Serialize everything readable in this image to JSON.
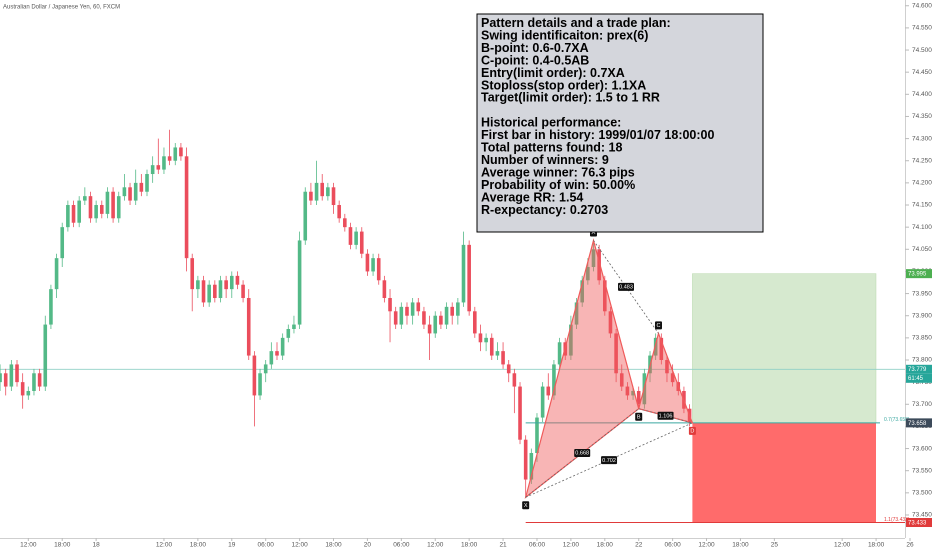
{
  "chart_data": {
    "type": "candlestick",
    "title": "Australian Dollar / Japanese Yen, 60, FXCM",
    "up_color": "#53b987",
    "down_color": "#eb4d5c",
    "xlim": [
      -5.01,
      156
    ],
    "ylim": [
      73.398,
      74.613
    ],
    "xticks": [
      {
        "value": 0,
        "label": "12:00"
      },
      {
        "value": 6,
        "label": "18:00"
      },
      {
        "value": 12,
        "label": "18"
      },
      {
        "value": 24,
        "label": "12:00"
      },
      {
        "value": 30,
        "label": "18:00"
      },
      {
        "value": 36,
        "label": "19"
      },
      {
        "value": 42,
        "label": "06:00"
      },
      {
        "value": 48,
        "label": "12:00"
      },
      {
        "value": 54,
        "label": "18:00"
      },
      {
        "value": 60,
        "label": "20"
      },
      {
        "value": 66,
        "label": "06:00"
      },
      {
        "value": 72,
        "label": "12:00"
      },
      {
        "value": 78,
        "label": "18:00"
      },
      {
        "value": 84,
        "label": "21"
      },
      {
        "value": 90,
        "label": "06:00"
      },
      {
        "value": 96,
        "label": "12:00"
      },
      {
        "value": 102,
        "label": "18:00"
      },
      {
        "value": 108,
        "label": "22"
      },
      {
        "value": 114,
        "label": "06:00"
      },
      {
        "value": 120,
        "label": "12:00"
      },
      {
        "value": 126,
        "label": "18:00"
      },
      {
        "value": 132,
        "label": "25"
      },
      {
        "value": 144,
        "label": "12:00"
      },
      {
        "value": 150,
        "label": "18:00"
      },
      {
        "value": 156,
        "label": "26"
      }
    ],
    "yticks": [
      {
        "value": 73.45,
        "label": "73.450"
      },
      {
        "value": 73.5,
        "label": "73.500"
      },
      {
        "value": 73.55,
        "label": "73.550"
      },
      {
        "value": 73.6,
        "label": "73.600"
      },
      {
        "value": 73.65,
        "label": "73.650"
      },
      {
        "value": 73.7,
        "label": "73.700"
      },
      {
        "value": 73.75,
        "label": "73.750"
      },
      {
        "value": 73.8,
        "label": "73.800"
      },
      {
        "value": 73.85,
        "label": "73.850"
      },
      {
        "value": 73.9,
        "label": "73.900"
      },
      {
        "value": 73.95,
        "label": "73.950"
      },
      {
        "value": 74,
        "label": "74.000"
      },
      {
        "value": 74.05,
        "label": "74.050"
      },
      {
        "value": 74.1,
        "label": "74.100"
      },
      {
        "value": 74.15,
        "label": "74.150"
      },
      {
        "value": 74.2,
        "label": "74.200"
      },
      {
        "value": 74.25,
        "label": "74.250"
      },
      {
        "value": 74.3,
        "label": "74.300"
      },
      {
        "value": 74.35,
        "label": "74.350"
      },
      {
        "value": 74.4,
        "label": "74.400"
      },
      {
        "value": 74.45,
        "label": "74.450"
      },
      {
        "value": 74.5,
        "label": "74.500"
      },
      {
        "value": 74.55,
        "label": "74.550"
      },
      {
        "value": 74.6,
        "label": "74.600"
      }
    ],
    "x": [
      -5,
      -4,
      -3,
      -2,
      -1,
      0,
      1,
      2,
      3,
      4,
      5,
      6,
      7,
      8,
      9,
      10,
      11,
      12,
      13,
      14,
      15,
      16,
      17,
      18,
      19,
      20,
      21,
      22,
      23,
      24,
      25,
      26,
      27,
      28,
      29,
      30,
      31,
      32,
      33,
      34,
      35,
      36,
      37,
      38,
      39,
      40,
      41,
      42,
      43,
      44,
      45,
      46,
      47,
      48,
      49,
      50,
      51,
      52,
      53,
      54,
      55,
      56,
      57,
      58,
      59,
      60,
      61,
      62,
      63,
      64,
      65,
      66,
      67,
      68,
      69,
      70,
      71,
      72,
      73,
      74,
      75,
      76,
      77,
      78,
      79,
      80,
      81,
      82,
      83,
      84,
      85,
      86,
      87,
      88,
      89,
      90,
      91,
      92,
      93,
      94,
      95,
      96,
      97,
      98,
      99,
      100,
      101,
      102,
      103,
      104,
      105,
      106,
      107,
      108,
      109,
      110,
      111,
      112,
      113,
      114,
      115,
      116,
      117
    ],
    "candles": [
      [
        73.75,
        73.79,
        73.73,
        73.77
      ],
      [
        73.77,
        73.78,
        73.72,
        73.74
      ],
      [
        73.74,
        73.8,
        73.73,
        73.79
      ],
      [
        73.79,
        73.8,
        73.74,
        73.75
      ],
      [
        73.75,
        73.77,
        73.69,
        73.72
      ],
      [
        73.72,
        73.74,
        73.71,
        73.73
      ],
      [
        73.73,
        73.78,
        73.72,
        73.77
      ],
      [
        73.77,
        73.78,
        73.73,
        73.74
      ],
      [
        73.74,
        73.9,
        73.73,
        73.88
      ],
      [
        73.88,
        73.97,
        73.87,
        73.96
      ],
      [
        73.96,
        74.04,
        73.94,
        74.03
      ],
      [
        74.03,
        74.11,
        74.01,
        74.1
      ],
      [
        74.1,
        74.16,
        74.09,
        74.15
      ],
      [
        74.15,
        74.16,
        74.1,
        74.11
      ],
      [
        74.11,
        74.17,
        74.1,
        74.16
      ],
      [
        74.16,
        74.19,
        74.15,
        74.17
      ],
      [
        74.17,
        74.18,
        74.11,
        74.12
      ],
      [
        74.12,
        74.16,
        74.11,
        74.15
      ],
      [
        74.15,
        74.16,
        74.12,
        74.13
      ],
      [
        74.13,
        74.19,
        74.12,
        74.18
      ],
      [
        74.18,
        74.19,
        74.11,
        74.12
      ],
      [
        74.12,
        74.18,
        74.11,
        74.17
      ],
      [
        74.17,
        74.22,
        74.16,
        74.19
      ],
      [
        74.19,
        74.2,
        74.15,
        74.16
      ],
      [
        74.16,
        74.23,
        74.15,
        74.2
      ],
      [
        74.2,
        74.22,
        74.17,
        74.18
      ],
      [
        74.18,
        74.23,
        74.17,
        74.22
      ],
      [
        74.22,
        74.26,
        74.2,
        74.24
      ],
      [
        74.24,
        74.3,
        74.22,
        74.23
      ],
      [
        74.23,
        74.28,
        74.22,
        74.26
      ],
      [
        74.26,
        74.32,
        74.24,
        74.25
      ],
      [
        74.25,
        74.29,
        74.24,
        74.28
      ],
      [
        74.28,
        74.29,
        74.25,
        74.26
      ],
      [
        74.26,
        74.28,
        74,
        74.03
      ],
      [
        74.03,
        74.04,
        73.91,
        73.96
      ],
      [
        73.96,
        73.99,
        73.94,
        73.98
      ],
      [
        73.98,
        73.99,
        73.92,
        73.93
      ],
      [
        73.93,
        73.98,
        73.92,
        73.97
      ],
      [
        73.97,
        73.98,
        73.93,
        73.94
      ],
      [
        73.94,
        73.99,
        73.93,
        73.98
      ],
      [
        73.98,
        73.99,
        73.94,
        73.96
      ],
      [
        73.96,
        74,
        73.94,
        73.99
      ],
      [
        73.99,
        74,
        73.96,
        73.97
      ],
      [
        73.97,
        73.98,
        73.93,
        73.94
      ],
      [
        73.94,
        73.96,
        73.8,
        73.81
      ],
      [
        73.81,
        73.82,
        73.65,
        73.72
      ],
      [
        73.72,
        73.78,
        73.71,
        73.77
      ],
      [
        73.77,
        73.8,
        73.75,
        73.79
      ],
      [
        73.79,
        73.84,
        73.78,
        73.82
      ],
      [
        73.82,
        73.84,
        73.8,
        73.81
      ],
      [
        73.81,
        73.86,
        73.8,
        73.85
      ],
      [
        73.85,
        73.88,
        73.84,
        73.87
      ],
      [
        73.87,
        73.9,
        73.86,
        73.88
      ],
      [
        73.88,
        74.09,
        73.87,
        74.07
      ],
      [
        74.07,
        74.19,
        74.06,
        74.18
      ],
      [
        74.18,
        74.2,
        74.15,
        74.16
      ],
      [
        74.16,
        74.25,
        74.15,
        74.2
      ],
      [
        74.2,
        74.22,
        74.16,
        74.17
      ],
      [
        74.17,
        74.2,
        74.16,
        74.19
      ],
      [
        74.19,
        74.2,
        74.13,
        74.15
      ],
      [
        74.15,
        74.16,
        74.11,
        74.12
      ],
      [
        74.12,
        74.13,
        74.09,
        74.1
      ],
      [
        74.1,
        74.11,
        74.05,
        74.06
      ],
      [
        74.06,
        74.1,
        74.05,
        74.09
      ],
      [
        74.09,
        74.1,
        74.03,
        74.04
      ],
      [
        74.04,
        74.05,
        73.99,
        74
      ],
      [
        74,
        74.04,
        73.99,
        74.03
      ],
      [
        74.03,
        74.04,
        73.97,
        73.98
      ],
      [
        73.98,
        73.99,
        73.93,
        73.94
      ],
      [
        73.94,
        73.96,
        73.84,
        73.91
      ],
      [
        73.91,
        73.92,
        73.87,
        73.88
      ],
      [
        73.88,
        73.93,
        73.87,
        73.92
      ],
      [
        73.92,
        73.93,
        73.88,
        73.9
      ],
      [
        73.9,
        73.94,
        73.88,
        73.93
      ],
      [
        73.93,
        73.94,
        73.9,
        73.91
      ],
      [
        73.91,
        73.92,
        73.87,
        73.88
      ],
      [
        73.88,
        73.9,
        73.8,
        73.86
      ],
      [
        73.86,
        73.91,
        73.85,
        73.9
      ],
      [
        73.9,
        73.91,
        73.87,
        73.88
      ],
      [
        73.88,
        73.93,
        73.87,
        73.92
      ],
      [
        73.92,
        73.93,
        73.88,
        73.9
      ],
      [
        73.9,
        73.94,
        73.88,
        73.93
      ],
      [
        73.93,
        74.09,
        73.92,
        74.06
      ],
      [
        74.06,
        74.07,
        73.9,
        73.91
      ],
      [
        73.91,
        73.92,
        73.85,
        73.86
      ],
      [
        73.86,
        73.88,
        73.82,
        73.84
      ],
      [
        73.84,
        73.86,
        73.82,
        73.85
      ],
      [
        73.85,
        73.86,
        73.8,
        73.81
      ],
      [
        73.81,
        73.84,
        73.8,
        73.82
      ],
      [
        73.82,
        73.84,
        73.78,
        73.79
      ],
      [
        73.79,
        73.8,
        73.75,
        73.77
      ],
      [
        73.77,
        73.78,
        73.68,
        73.74
      ],
      [
        73.74,
        73.75,
        73.61,
        73.62
      ],
      [
        73.62,
        73.63,
        73.49,
        73.53
      ],
      [
        73.53,
        73.6,
        73.52,
        73.59
      ],
      [
        73.59,
        73.68,
        73.57,
        73.67
      ],
      [
        73.67,
        73.75,
        73.66,
        73.74
      ],
      [
        73.74,
        73.77,
        73.71,
        73.72
      ],
      [
        73.72,
        73.8,
        73.71,
        73.79
      ],
      [
        73.79,
        73.85,
        73.78,
        73.84
      ],
      [
        73.84,
        73.85,
        73.8,
        73.81
      ],
      [
        73.81,
        73.9,
        73.8,
        73.88
      ],
      [
        73.88,
        73.94,
        73.87,
        73.93
      ],
      [
        73.93,
        73.99,
        73.92,
        73.98
      ],
      [
        73.98,
        74.03,
        73.97,
        74.01
      ],
      [
        74.01,
        74.07,
        74,
        74.05
      ],
      [
        74.05,
        74.06,
        73.97,
        73.98
      ],
      [
        73.98,
        73.99,
        73.9,
        73.91
      ],
      [
        73.91,
        73.92,
        73.85,
        73.86
      ],
      [
        73.86,
        73.87,
        73.75,
        73.77
      ],
      [
        73.77,
        73.79,
        73.73,
        73.74
      ],
      [
        73.74,
        73.75,
        73.71,
        73.72
      ],
      [
        73.72,
        73.74,
        73.71,
        73.73
      ],
      [
        73.73,
        73.74,
        73.69,
        73.7
      ],
      [
        73.7,
        73.78,
        73.69,
        73.77
      ],
      [
        73.77,
        73.82,
        73.75,
        73.81
      ],
      [
        73.81,
        73.86,
        73.8,
        73.85
      ],
      [
        73.85,
        73.86,
        73.79,
        73.8
      ],
      [
        73.8,
        73.81,
        73.75,
        73.77
      ],
      [
        73.77,
        73.79,
        73.74,
        73.75
      ],
      [
        73.75,
        73.77,
        73.72,
        73.73
      ],
      [
        73.73,
        73.74,
        73.68,
        73.69
      ],
      [
        73.69,
        73.7,
        73.65,
        73.66
      ]
    ],
    "pattern": {
      "color": "#f05a5a",
      "points": [
        {
          "label": "X",
          "x": 88,
          "price": 73.49
        },
        {
          "label": "A",
          "x": 100,
          "price": 74.07
        },
        {
          "label": "B",
          "x": 108,
          "price": 73.69
        },
        {
          "label": "C",
          "x": 111.5,
          "price": 73.86
        },
        {
          "label": "D",
          "x": 117.5,
          "price": 73.658
        }
      ],
      "ratios": {
        "AC": 0.483,
        "XB": 0.668,
        "XD": 0.702,
        "BD": 1.106
      }
    },
    "trade": {
      "target": 73.995,
      "entry": 73.658,
      "stop": 73.433,
      "entry_label": "0.7(73.658)",
      "stop_label": "1.1(73.433)"
    },
    "last_price": 73.779,
    "countdown": "61:45",
    "plan": [
      "Pattern details and a trade plan:",
      "Swing identificaiton: prex(6)",
      "B-point: 0.6-0.7XA",
      "C-point: 0.4-0.5AB",
      "Entry(limit order): 0.7XA",
      "Stoploss(stop order): 1.1XA",
      "Target(limit order): 1.5 to 1 RR"
    ],
    "performance": [
      "Historical performance:",
      "First bar in history: 1999/01/07 18:00:00",
      "Total patterns found: 18",
      "Number of winners: 9",
      "Average winner: 76.3 pips",
      "Probability of win: 50.00%",
      "Average RR: 1.54",
      "R-expectancy: 0.2703"
    ]
  }
}
